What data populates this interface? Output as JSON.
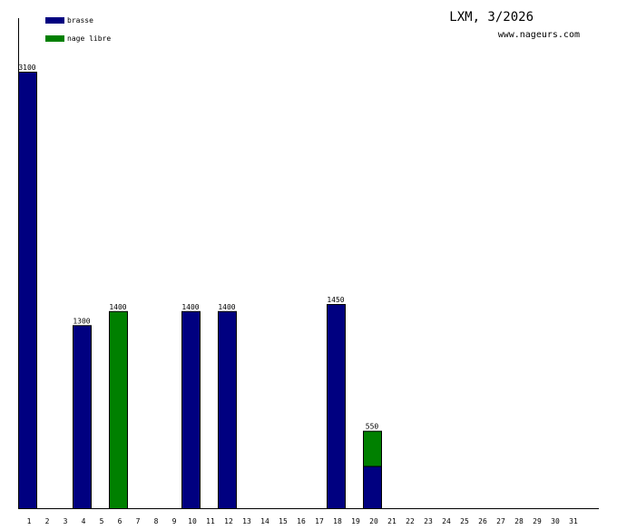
{
  "chart_data": {
    "type": "bar",
    "stacked": true,
    "title": "LXM, 3/2026",
    "subtitle": "www.nageurs.com",
    "xlabel": "",
    "ylabel": "",
    "ylim": [
      0,
      3100
    ],
    "legend_position": "top-left",
    "categories": [
      "1",
      "2",
      "3",
      "4",
      "5",
      "6",
      "7",
      "8",
      "9",
      "10",
      "11",
      "12",
      "13",
      "14",
      "15",
      "16",
      "17",
      "18",
      "19",
      "20",
      "21",
      "22",
      "23",
      "24",
      "25",
      "26",
      "27",
      "28",
      "29",
      "30",
      "31"
    ],
    "series": [
      {
        "name": "brasse",
        "color": "#000080",
        "values": [
          3100,
          0,
          0,
          1300,
          0,
          0,
          0,
          0,
          0,
          1400,
          0,
          1400,
          0,
          0,
          0,
          0,
          0,
          1450,
          0,
          300,
          0,
          0,
          0,
          0,
          0,
          0,
          0,
          0,
          0,
          0,
          0
        ]
      },
      {
        "name": "nage libre",
        "color": "#008000",
        "values": [
          0,
          0,
          0,
          0,
          0,
          1400,
          0,
          0,
          0,
          0,
          0,
          0,
          0,
          0,
          0,
          0,
          0,
          0,
          0,
          250,
          0,
          0,
          0,
          0,
          0,
          0,
          0,
          0,
          0,
          0,
          0
        ]
      }
    ],
    "totals": [
      "3100",
      "",
      "",
      "1300",
      "",
      "1400",
      "",
      "",
      "",
      "1400",
      "",
      "1400",
      "",
      "",
      "",
      "",
      "",
      "1450",
      "",
      "550",
      "",
      "",
      "",
      "",
      "",
      "",
      "",
      "",
      "",
      "",
      ""
    ]
  }
}
